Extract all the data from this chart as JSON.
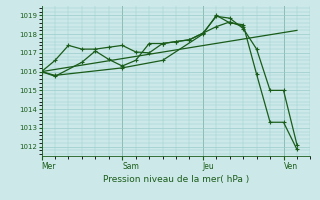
{
  "background_color": "#cce8e8",
  "grid_color": "#99cccc",
  "line_color": "#1a5c1a",
  "title": "Pression niveau de la mer( hPa )",
  "ylim": [
    1011.5,
    1019.5
  ],
  "yticks": [
    1012,
    1013,
    1014,
    1015,
    1016,
    1017,
    1018,
    1019
  ],
  "day_labels": [
    "Mer",
    "Sam",
    "Jeu",
    "Ven"
  ],
  "day_positions": [
    0.0,
    6.0,
    12.0,
    18.0
  ],
  "xlim": [
    0,
    20
  ],
  "series1_x": [
    0,
    1,
    2,
    3,
    4,
    5,
    6,
    7,
    8,
    9,
    10,
    11,
    12,
    13,
    14,
    15,
    16,
    17,
    18,
    19
  ],
  "series1_y": [
    1016.0,
    1016.6,
    1017.4,
    1017.2,
    1017.2,
    1017.3,
    1017.4,
    1017.05,
    1017.0,
    1017.5,
    1017.6,
    1017.7,
    1018.05,
    1018.95,
    1018.85,
    1018.3,
    1017.2,
    1015.0,
    1015.0,
    1012.1
  ],
  "series2_x": [
    0,
    1,
    3,
    4,
    5,
    6,
    7,
    8,
    9,
    10,
    11,
    12,
    13,
    14,
    15
  ],
  "series2_y": [
    1016.0,
    1015.75,
    1016.5,
    1017.1,
    1016.65,
    1016.3,
    1016.6,
    1017.5,
    1017.5,
    1017.6,
    1017.7,
    1018.05,
    1018.4,
    1018.65,
    1018.4
  ],
  "series3_x": [
    0,
    1,
    6,
    9,
    12,
    13,
    14,
    15,
    16,
    17,
    18,
    19
  ],
  "series3_y": [
    1016.0,
    1015.8,
    1016.2,
    1016.6,
    1018.0,
    1019.0,
    1018.6,
    1018.5,
    1015.85,
    1013.3,
    1013.3,
    1011.85
  ],
  "series4_x": [
    0,
    19
  ],
  "series4_y": [
    1016.0,
    1018.2
  ]
}
